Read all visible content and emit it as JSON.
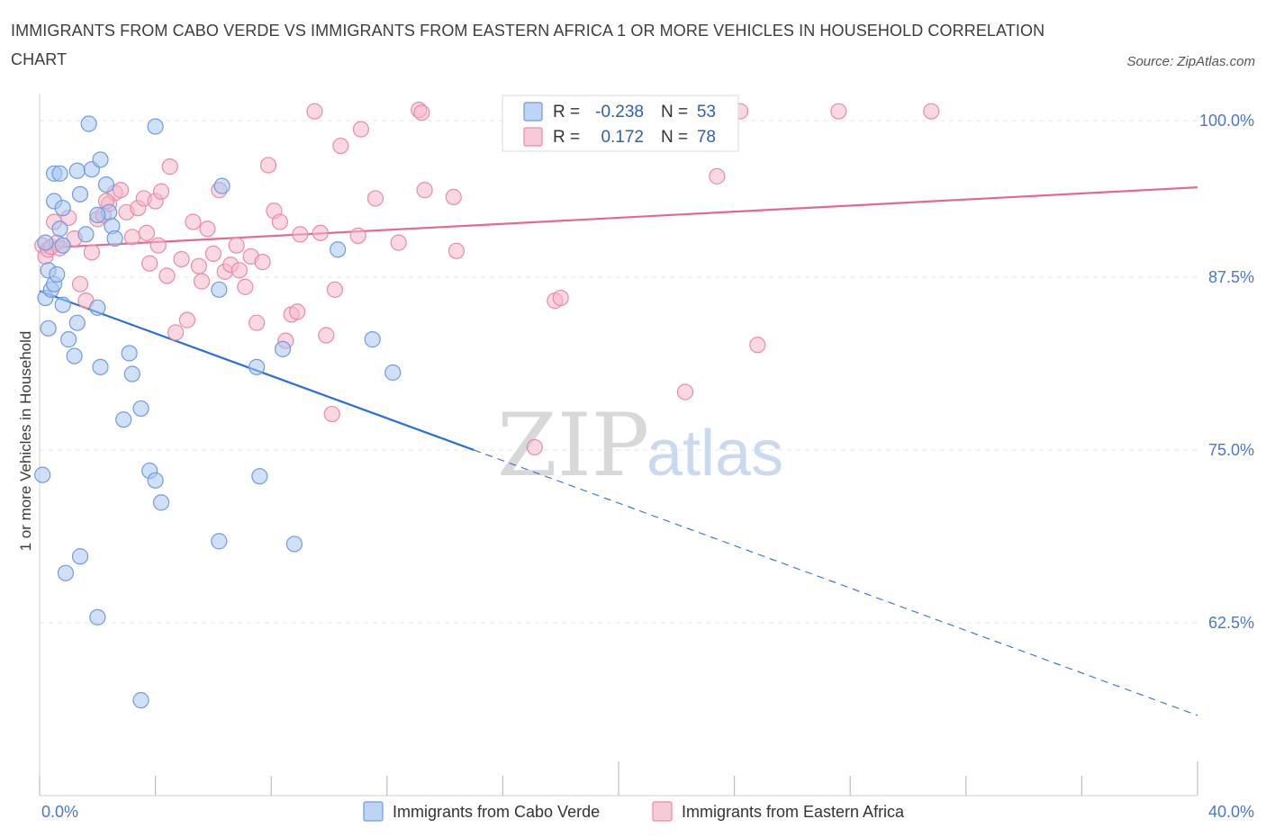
{
  "title": "IMMIGRANTS FROM CABO VERDE VS IMMIGRANTS FROM EASTERN AFRICA 1 OR MORE VEHICLES IN HOUSEHOLD CORRELATION CHART",
  "source": "Source: ZipAtlas.com",
  "watermark": {
    "zip": "ZIP",
    "atlas": "atlas"
  },
  "legend": {
    "r_label": "R =",
    "n_label": "N =",
    "rows": [
      {
        "r": "-0.238",
        "n": "53",
        "color": "#a8c6f0"
      },
      {
        "r": "0.172",
        "n": "78",
        "color": "#f5b8ca"
      }
    ]
  },
  "bottom_legend": [
    {
      "label": "Immigrants from Cabo Verde",
      "color": "#a8c6f0"
    },
    {
      "label": "Immigrants from Eastern Africa",
      "color": "#f5b8ca"
    }
  ],
  "chart_data": {
    "type": "scatter",
    "title": "IMMIGRANTS FROM CABO VERDE VS IMMIGRANTS FROM EASTERN AFRICA 1 OR MORE VEHICLES IN HOUSEHOLD CORRELATION CHART",
    "xlabel": "",
    "ylabel": "1 or more Vehicles in Household",
    "xlim": [
      0,
      40
    ],
    "ylim": [
      50,
      100
    ],
    "x_tick_labels": [
      "0.0%",
      "40.0%"
    ],
    "y_ticks": [
      62.5,
      75.0,
      87.5,
      100.0
    ],
    "y_tick_labels": [
      "62.5%",
      "75.0%",
      "87.5%",
      "100.0%"
    ],
    "grid": true,
    "legend_position": "top-center",
    "series": [
      {
        "name": "Immigrants from Cabo Verde",
        "color": "#a8c6f0",
        "stroke": "#6f9be0",
        "trend": {
          "x0": 0,
          "y0": 86.5,
          "x1": 15,
          "y1": 75.0,
          "dash_to_x": 40,
          "dash_to_y": 55.8,
          "color": "#2b6fcf"
        },
        "points": [
          [
            0.2,
            90.0
          ],
          [
            0.3,
            88.0
          ],
          [
            0.2,
            86.0
          ],
          [
            0.3,
            83.8
          ],
          [
            0.4,
            86.6
          ],
          [
            0.5,
            87.0
          ],
          [
            0.6,
            87.7
          ],
          [
            0.1,
            73.2
          ],
          [
            0.5,
            95.0
          ],
          [
            0.7,
            95.0
          ],
          [
            0.5,
            93.0
          ],
          [
            0.8,
            92.5
          ],
          [
            0.7,
            91.0
          ],
          [
            0.8,
            89.8
          ],
          [
            0.8,
            85.5
          ],
          [
            1.0,
            83.0
          ],
          [
            1.2,
            81.8
          ],
          [
            1.3,
            84.2
          ],
          [
            1.3,
            95.2
          ],
          [
            1.4,
            93.5
          ],
          [
            1.6,
            90.6
          ],
          [
            1.7,
            98.6
          ],
          [
            1.8,
            95.3
          ],
          [
            2.1,
            96.0
          ],
          [
            2.3,
            94.2
          ],
          [
            2.4,
            92.2
          ],
          [
            2.5,
            91.2
          ],
          [
            2.6,
            90.3
          ],
          [
            2.1,
            81.0
          ],
          [
            3.1,
            82.0
          ],
          [
            3.2,
            80.5
          ],
          [
            3.5,
            78.0
          ],
          [
            2.9,
            77.2
          ],
          [
            4.0,
            98.4
          ],
          [
            3.8,
            73.5
          ],
          [
            4.0,
            72.8
          ],
          [
            4.2,
            71.2
          ],
          [
            2.0,
            85.3
          ],
          [
            6.3,
            94.1
          ],
          [
            6.2,
            86.6
          ],
          [
            7.5,
            81.0
          ],
          [
            7.6,
            73.1
          ],
          [
            8.4,
            82.3
          ],
          [
            8.8,
            68.2
          ],
          [
            10.3,
            89.5
          ],
          [
            11.5,
            83.0
          ],
          [
            12.2,
            80.6
          ],
          [
            6.2,
            68.4
          ],
          [
            1.4,
            67.3
          ],
          [
            0.9,
            66.1
          ],
          [
            2.0,
            62.9
          ],
          [
            3.5,
            56.9
          ],
          [
            2.0,
            92.0
          ]
        ]
      },
      {
        "name": "Immigrants from Eastern Africa",
        "color": "#f5b8ca",
        "stroke": "#e88aa8",
        "trend": {
          "x0": 0,
          "y0": 89.6,
          "x1": 40,
          "y1": 94.0,
          "color": "#e06a92"
        },
        "points": [
          [
            0.1,
            89.8
          ],
          [
            0.2,
            89.0
          ],
          [
            0.3,
            89.5
          ],
          [
            0.4,
            89.7
          ],
          [
            0.5,
            91.5
          ],
          [
            0.6,
            90.0
          ],
          [
            0.7,
            89.6
          ],
          [
            1.0,
            91.8
          ],
          [
            1.2,
            90.3
          ],
          [
            1.4,
            87.0
          ],
          [
            1.6,
            85.8
          ],
          [
            1.8,
            89.3
          ],
          [
            2.0,
            91.7
          ],
          [
            2.2,
            92.0
          ],
          [
            2.4,
            92.8
          ],
          [
            2.6,
            93.6
          ],
          [
            2.8,
            93.8
          ],
          [
            3.0,
            92.2
          ],
          [
            3.2,
            90.4
          ],
          [
            3.4,
            92.5
          ],
          [
            3.6,
            93.2
          ],
          [
            3.8,
            88.5
          ],
          [
            4.0,
            93.0
          ],
          [
            4.2,
            93.7
          ],
          [
            4.4,
            87.6
          ],
          [
            4.5,
            95.5
          ],
          [
            4.7,
            83.5
          ],
          [
            4.9,
            88.8
          ],
          [
            5.1,
            84.4
          ],
          [
            5.3,
            91.5
          ],
          [
            5.5,
            88.3
          ],
          [
            5.6,
            87.2
          ],
          [
            5.8,
            91.0
          ],
          [
            6.0,
            89.2
          ],
          [
            6.2,
            93.8
          ],
          [
            6.4,
            87.9
          ],
          [
            6.6,
            88.4
          ],
          [
            6.9,
            88.0
          ],
          [
            7.1,
            86.8
          ],
          [
            7.3,
            89.0
          ],
          [
            7.5,
            84.2
          ],
          [
            7.7,
            88.6
          ],
          [
            7.9,
            95.6
          ],
          [
            8.1,
            92.3
          ],
          [
            8.3,
            91.5
          ],
          [
            8.5,
            82.9
          ],
          [
            8.7,
            84.8
          ],
          [
            8.9,
            85.0
          ],
          [
            9.0,
            90.6
          ],
          [
            9.5,
            99.5
          ],
          [
            9.7,
            90.7
          ],
          [
            9.9,
            83.3
          ],
          [
            10.2,
            86.6
          ],
          [
            10.4,
            97.0
          ],
          [
            11.0,
            90.5
          ],
          [
            11.1,
            98.2
          ],
          [
            11.6,
            93.2
          ],
          [
            12.4,
            90.0
          ],
          [
            13.1,
            99.6
          ],
          [
            13.3,
            93.8
          ],
          [
            14.3,
            93.3
          ],
          [
            14.4,
            89.4
          ],
          [
            10.1,
            77.6
          ],
          [
            17.1,
            75.2
          ],
          [
            17.8,
            85.8
          ],
          [
            18.0,
            86.0
          ],
          [
            22.3,
            79.2
          ],
          [
            22.9,
            99.4
          ],
          [
            23.4,
            94.8
          ],
          [
            24.2,
            99.5
          ],
          [
            24.8,
            82.6
          ],
          [
            27.6,
            99.5
          ],
          [
            30.8,
            99.5
          ],
          [
            3.7,
            90.7
          ],
          [
            6.8,
            89.8
          ],
          [
            4.1,
            89.8
          ],
          [
            13.2,
            99.4
          ],
          [
            2.3,
            93.0
          ]
        ]
      }
    ]
  }
}
